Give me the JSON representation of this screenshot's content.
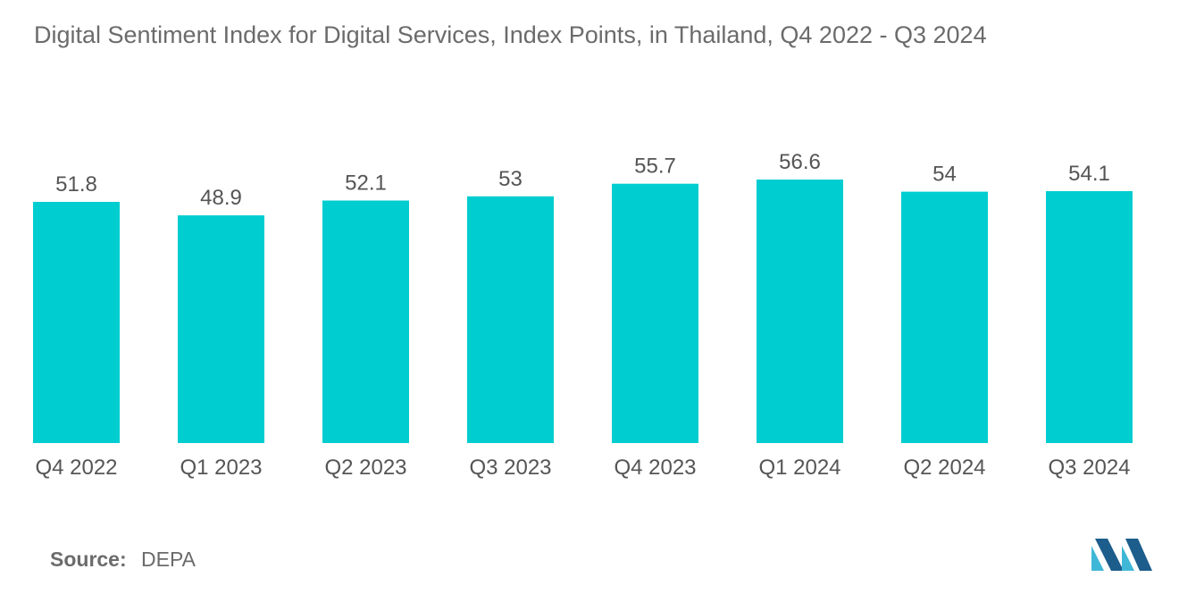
{
  "source": {
    "label": "Source:",
    "value": "DEPA"
  },
  "logo": {
    "icon": "mordor-intelligence-logo-icon",
    "color_light": "#3fb8d8",
    "color_dark": "#1c5d8c"
  },
  "chart_data": {
    "type": "bar",
    "title": "Digital Sentiment Index for Digital Services, Index Points, in Thailand, Q4 2022 - Q3 2024",
    "xlabel": "",
    "ylabel": "",
    "categories": [
      "Q4 2022",
      "Q1 2023",
      "Q2 2023",
      "Q3 2023",
      "Q4 2023",
      "Q1 2024",
      "Q2 2024",
      "Q3 2024"
    ],
    "values": [
      51.8,
      48.9,
      52.1,
      53,
      55.7,
      56.6,
      54,
      54.1
    ],
    "value_labels": [
      "51.8",
      "48.9",
      "52.1",
      "53",
      "55.7",
      "56.6",
      "54",
      "54.1"
    ],
    "ylim": [
      0,
      56.6
    ],
    "grid": false,
    "bar_color": "#00cdd0"
  }
}
